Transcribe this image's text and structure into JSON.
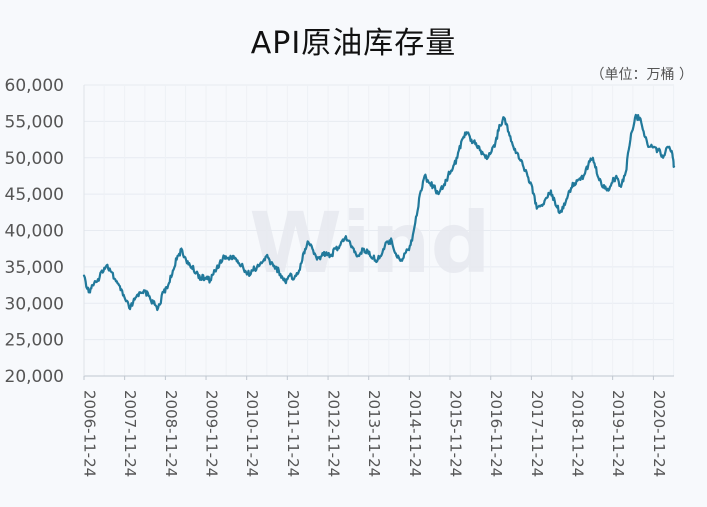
{
  "chart_data": {
    "type": "line",
    "title": "API原油库存量",
    "unit": "（单位：万桶 ）",
    "watermark": "Wind",
    "xlabel": "",
    "ylabel": "",
    "ylim": [
      20000,
      60000
    ],
    "y_ticks": [
      "20,000",
      "25,000",
      "30,000",
      "35,000",
      "40,000",
      "45,000",
      "50,000",
      "55,000",
      "60,000"
    ],
    "x_ticks": [
      "2006-11-24",
      "2007-11-24",
      "2008-11-24",
      "2009-11-24",
      "2010-11-24",
      "2011-11-24",
      "2012-11-24",
      "2013-11-24",
      "2014-11-24",
      "2015-11-24",
      "2016-11-24",
      "2017-11-24",
      "2018-11-24",
      "2019-11-24",
      "2020-11-24"
    ],
    "xlim": [
      "2006-11-24",
      "2021-05-28"
    ],
    "grid": true,
    "legend": "none",
    "line_color": "#21799b",
    "series": [
      {
        "values": [
          [
            "2006-11-24",
            33800
          ],
          [
            "2007-01-05",
            31500
          ],
          [
            "2007-02-09",
            32500
          ],
          [
            "2007-03-23",
            33000
          ],
          [
            "2007-05-04",
            34500
          ],
          [
            "2007-06-15",
            35200
          ],
          [
            "2007-07-27",
            34300
          ],
          [
            "2007-09-07",
            33000
          ],
          [
            "2007-10-19",
            31800
          ],
          [
            "2007-11-30",
            30500
          ],
          [
            "2008-01-11",
            29200
          ],
          [
            "2008-02-22",
            30500
          ],
          [
            "2008-04-04",
            31500
          ],
          [
            "2008-05-16",
            31800
          ],
          [
            "2008-06-27",
            31000
          ],
          [
            "2008-08-08",
            30000
          ],
          [
            "2008-09-19",
            29300
          ],
          [
            "2008-11-07",
            31500
          ],
          [
            "2008-12-19",
            32500
          ],
          [
            "2009-01-30",
            34500
          ],
          [
            "2009-03-13",
            36500
          ],
          [
            "2009-04-24",
            37300
          ],
          [
            "2009-06-05",
            35500
          ],
          [
            "2009-07-17",
            35000
          ],
          [
            "2009-08-28",
            34200
          ],
          [
            "2009-10-09",
            33500
          ],
          [
            "2009-11-20",
            33500
          ],
          [
            "2010-01-01",
            33200
          ],
          [
            "2010-02-12",
            34500
          ],
          [
            "2010-03-26",
            35500
          ],
          [
            "2010-05-07",
            36500
          ],
          [
            "2010-06-18",
            36000
          ],
          [
            "2010-07-30",
            36500
          ],
          [
            "2010-09-10",
            35500
          ],
          [
            "2010-10-22",
            35000
          ],
          [
            "2010-12-03",
            34000
          ],
          [
            "2011-01-14",
            34500
          ],
          [
            "2011-02-25",
            35000
          ],
          [
            "2011-04-08",
            35500
          ],
          [
            "2011-05-20",
            36500
          ],
          [
            "2011-07-01",
            35500
          ],
          [
            "2011-08-12",
            35000
          ],
          [
            "2011-09-23",
            34000
          ],
          [
            "2011-11-04",
            33000
          ],
          [
            "2011-12-16",
            33800
          ],
          [
            "2012-01-27",
            33500
          ],
          [
            "2012-03-09",
            34500
          ],
          [
            "2012-04-20",
            37000
          ],
          [
            "2012-05-25",
            38500
          ],
          [
            "2012-07-06",
            37500
          ],
          [
            "2012-08-17",
            36000
          ],
          [
            "2012-09-28",
            36500
          ],
          [
            "2012-11-09",
            37000
          ],
          [
            "2012-12-21",
            36500
          ],
          [
            "2013-02-01",
            37500
          ],
          [
            "2013-03-15",
            38000
          ],
          [
            "2013-04-26",
            39000
          ],
          [
            "2013-06-07",
            38500
          ],
          [
            "2013-07-19",
            37000
          ],
          [
            "2013-08-30",
            36500
          ],
          [
            "2013-10-11",
            37500
          ],
          [
            "2013-11-22",
            36800
          ],
          [
            "2014-01-03",
            36200
          ],
          [
            "2014-02-14",
            36000
          ],
          [
            "2014-03-28",
            37000
          ],
          [
            "2014-05-09",
            38500
          ],
          [
            "2014-06-20",
            38500
          ],
          [
            "2014-08-01",
            36500
          ],
          [
            "2014-09-12",
            36000
          ],
          [
            "2014-10-24",
            37000
          ],
          [
            "2014-12-05",
            38000
          ],
          [
            "2015-01-16",
            41000
          ],
          [
            "2015-02-27",
            45000
          ],
          [
            "2015-04-10",
            47500
          ],
          [
            "2015-05-22",
            46500
          ],
          [
            "2015-07-03",
            46000
          ],
          [
            "2015-08-14",
            45000
          ],
          [
            "2015-09-25",
            46000
          ],
          [
            "2015-11-06",
            47500
          ],
          [
            "2015-12-18",
            48500
          ],
          [
            "2016-01-29",
            50000
          ],
          [
            "2016-03-11",
            52500
          ],
          [
            "2016-04-22",
            53500
          ],
          [
            "2016-06-03",
            52500
          ],
          [
            "2016-07-15",
            52000
          ],
          [
            "2016-08-26",
            51000
          ],
          [
            "2016-10-07",
            50000
          ],
          [
            "2016-11-18",
            50500
          ],
          [
            "2016-12-30",
            51500
          ],
          [
            "2017-02-10",
            54500
          ],
          [
            "2017-03-24",
            55500
          ],
          [
            "2017-05-05",
            53500
          ],
          [
            "2017-06-16",
            51500
          ],
          [
            "2017-07-28",
            50500
          ],
          [
            "2017-09-08",
            49000
          ],
          [
            "2017-10-20",
            47500
          ],
          [
            "2017-12-01",
            46000
          ],
          [
            "2018-01-12",
            43000
          ],
          [
            "2018-02-23",
            43500
          ],
          [
            "2018-04-06",
            44500
          ],
          [
            "2018-05-18",
            45500
          ],
          [
            "2018-06-29",
            43500
          ],
          [
            "2018-08-10",
            42500
          ],
          [
            "2018-09-21",
            43500
          ],
          [
            "2018-11-02",
            45500
          ],
          [
            "2018-12-14",
            46500
          ],
          [
            "2019-01-25",
            47000
          ],
          [
            "2019-03-08",
            47500
          ],
          [
            "2019-04-19",
            49000
          ],
          [
            "2019-05-31",
            50000
          ],
          [
            "2019-07-12",
            47500
          ],
          [
            "2019-08-23",
            46000
          ],
          [
            "2019-10-04",
            45500
          ],
          [
            "2019-11-15",
            46500
          ],
          [
            "2019-12-27",
            47500
          ],
          [
            "2020-02-07",
            46000
          ],
          [
            "2020-03-20",
            48000
          ],
          [
            "2020-05-01",
            52500
          ],
          [
            "2020-06-12",
            55500
          ],
          [
            "2020-07-24",
            55500
          ],
          [
            "2020-09-04",
            53000
          ],
          [
            "2020-10-16",
            51500
          ],
          [
            "2020-11-27",
            51500
          ],
          [
            "2021-01-08",
            51000
          ],
          [
            "2021-02-19",
            50000
          ],
          [
            "2021-04-02",
            51500
          ],
          [
            "2021-05-14",
            50500
          ],
          [
            "2021-05-28",
            48800
          ]
        ]
      }
    ]
  }
}
